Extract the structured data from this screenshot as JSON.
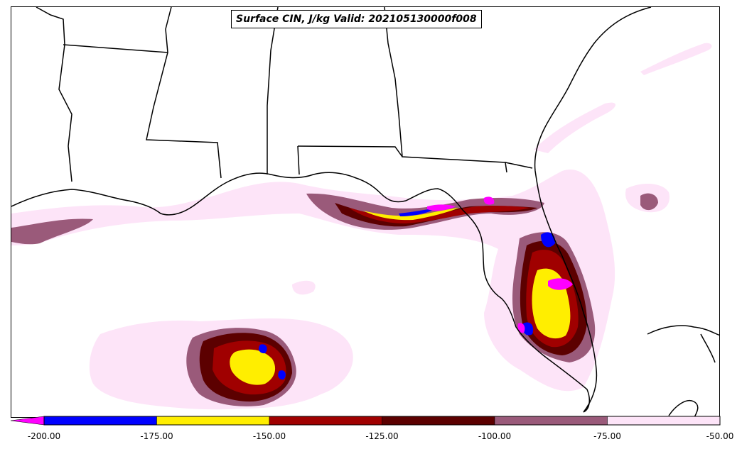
{
  "title": "Surface CIN, J/kg Valid: 202105130000f008",
  "colorbar": {
    "ticks": [
      "-200.00",
      "-175.00",
      "-150.00",
      "-125.00",
      "-100.00",
      "-75.00",
      "-50.00"
    ],
    "bins": [
      {
        "range": [
          -200,
          -175
        ],
        "color": "#0000ff"
      },
      {
        "range": [
          -175,
          -150
        ],
        "color": "#ffee00"
      },
      {
        "range": [
          -150,
          -125
        ],
        "color": "#a00000"
      },
      {
        "range": [
          -125,
          -100
        ],
        "color": "#5c0000"
      },
      {
        "range": [
          -100,
          -75
        ],
        "color": "#9a5a7a"
      },
      {
        "range": [
          -75,
          -50
        ],
        "color": "#fde4f8"
      }
    ],
    "extend_min_color": "#ff00ff"
  }
}
